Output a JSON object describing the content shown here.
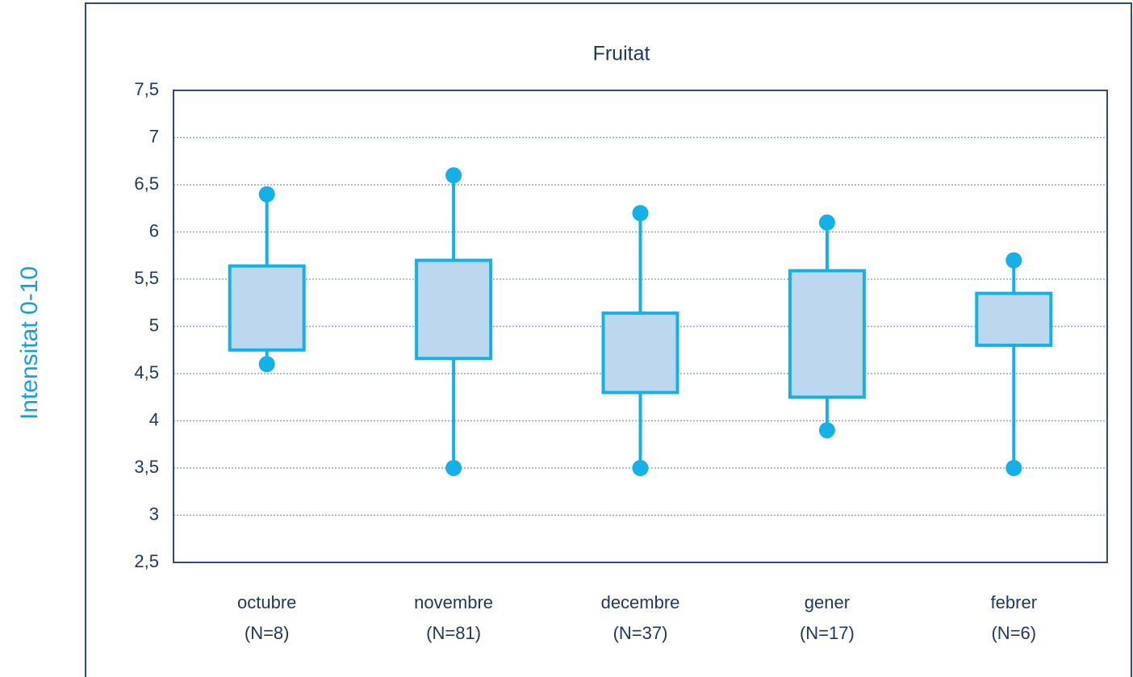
{
  "chart_data": {
    "type": "box",
    "title": "Fruitat",
    "y_label": "Intensitat 0-10",
    "categories": [
      [
        "octubre",
        "(N=8)"
      ],
      [
        "novembre",
        "(N=81)"
      ],
      [
        "decembre",
        "(N=37)"
      ],
      [
        "gener",
        "(N=17)"
      ],
      [
        "febrer",
        "(N=6)"
      ]
    ],
    "min": [
      4.6,
      3.5,
      3.5,
      3.9,
      3.5
    ],
    "q1": [
      4.75,
      4.66,
      4.3,
      4.25,
      4.8
    ],
    "q3": [
      5.64,
      5.7,
      5.14,
      5.59,
      5.35
    ],
    "max": [
      6.4,
      6.6,
      6.2,
      6.1,
      5.7
    ],
    "color": "#14b0e8",
    "box_fill": "#bdd7ee",
    "ylim": [
      2.5,
      7.5
    ],
    "yticks": [
      {
        "value": 2.5,
        "label": "2,5"
      },
      3,
      {
        "value": 3.5,
        "label": "3,5"
      },
      4,
      {
        "value": 4.5,
        "label": "4,5"
      },
      5,
      {
        "value": 5.5,
        "label": "5,5"
      },
      6,
      {
        "value": 6.5,
        "label": "6,5"
      },
      7,
      {
        "value": 7.5,
        "label": "7,5"
      }
    ],
    "grid": true
  }
}
